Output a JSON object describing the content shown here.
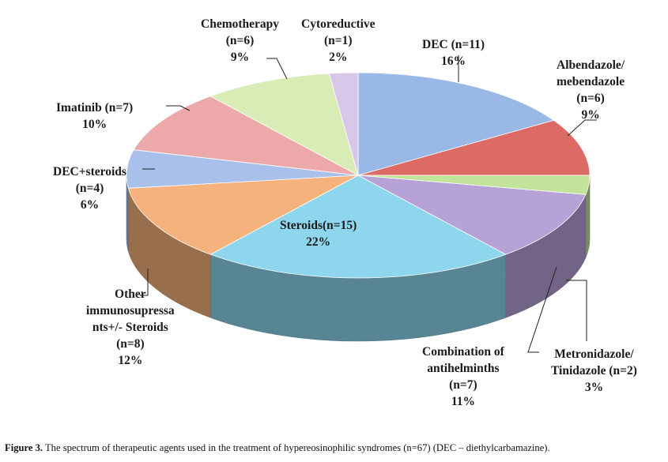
{
  "chart_data": {
    "type": "pie",
    "style": "3d",
    "slices": [
      {
        "key": "dec",
        "lines": [
          "DEC (n=11)",
          "16%"
        ],
        "value": 16,
        "color": "#99b8e6"
      },
      {
        "key": "albendazole",
        "lines": [
          "Albendazole/",
          "mebendazole",
          "(n=6)",
          "9%"
        ],
        "value": 9,
        "color": "#dd6b65"
      },
      {
        "key": "metronidazole",
        "lines": [
          "Metronidazole/",
          "Tinidazole (n=2)",
          "3%"
        ],
        "value": 3,
        "color": "#c4e39a"
      },
      {
        "key": "antihelminths",
        "lines": [
          "Combination of",
          "antihelminths",
          "(n=7)",
          "11%"
        ],
        "value": 11,
        "color": "#b7a2d8"
      },
      {
        "key": "steroids",
        "lines": [
          "Steroids(n=15)",
          "22%"
        ],
        "value": 22,
        "color": "#8ed6ee"
      },
      {
        "key": "immunosuppressants",
        "lines": [
          "Other",
          "immunosupressa",
          "nts+/- Steroids",
          "(n=8)",
          "12%"
        ],
        "value": 12,
        "color": "#f5b27c"
      },
      {
        "key": "dec-steroids",
        "lines": [
          "DEC+steroids",
          "(n=4)",
          "6%"
        ],
        "value": 6,
        "color": "#a8c0ea"
      },
      {
        "key": "imatinib",
        "lines": [
          "Imatinib (n=7)",
          "10%"
        ],
        "value": 10,
        "color": "#eda9a9"
      },
      {
        "key": "chemotherapy",
        "lines": [
          "Chemotherapy",
          "(n=6)",
          "9%"
        ],
        "value": 9,
        "color": "#d9ecb6"
      },
      {
        "key": "cytoreductive",
        "lines": [
          "Cytoreductive",
          "(n=1)",
          "2%"
        ],
        "value": 2,
        "color": "#d7c8ea"
      }
    ]
  },
  "caption": {
    "label": "Figure 3.",
    "text": " The spectrum of therapeutic agents used in the treatment of hypereosinophilic syndromes (n=67) (DEC – diethylcarbamazine)."
  }
}
